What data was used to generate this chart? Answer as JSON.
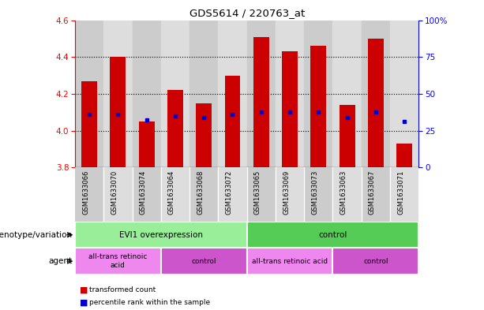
{
  "title": "GDS5614 / 220763_at",
  "samples": [
    "GSM1633066",
    "GSM1633070",
    "GSM1633074",
    "GSM1633064",
    "GSM1633068",
    "GSM1633072",
    "GSM1633065",
    "GSM1633069",
    "GSM1633073",
    "GSM1633063",
    "GSM1633067",
    "GSM1633071"
  ],
  "bar_values": [
    4.27,
    4.4,
    4.05,
    4.22,
    4.15,
    4.3,
    4.51,
    4.43,
    4.46,
    4.14,
    4.5,
    3.93
  ],
  "bar_base": 3.8,
  "blue_dot_values": [
    4.09,
    4.09,
    4.06,
    4.08,
    4.07,
    4.09,
    4.1,
    4.1,
    4.1,
    4.07,
    4.1,
    4.05
  ],
  "ylim_left": [
    3.8,
    4.6
  ],
  "ylim_right": [
    0,
    100
  ],
  "yticks_left": [
    3.8,
    4.0,
    4.2,
    4.4,
    4.6
  ],
  "yticks_right": [
    0,
    25,
    50,
    75,
    100
  ],
  "bar_color": "#cc0000",
  "dot_color": "#0000cc",
  "bar_width": 0.55,
  "groups": [
    {
      "label": "EVI1 overexpression",
      "start": 0,
      "end": 6,
      "color": "#99ee99"
    },
    {
      "label": "control",
      "start": 6,
      "end": 12,
      "color": "#55cc55"
    }
  ],
  "agents": [
    {
      "label": "all-trans retinoic\nacid",
      "start": 0,
      "end": 3,
      "color": "#ee88ee"
    },
    {
      "label": "control",
      "start": 3,
      "end": 6,
      "color": "#cc55cc"
    },
    {
      "label": "all-trans retinoic acid",
      "start": 6,
      "end": 9,
      "color": "#ee88ee"
    },
    {
      "label": "control",
      "start": 9,
      "end": 12,
      "color": "#cc55cc"
    }
  ],
  "genotype_label": "genotype/variation",
  "agent_label": "agent",
  "legend_items": [
    {
      "label": "transformed count",
      "color": "#cc0000"
    },
    {
      "label": "percentile rank within the sample",
      "color": "#0000cc"
    }
  ],
  "bg_color": "#ffffff",
  "col_bg_even": "#cccccc",
  "col_bg_odd": "#dddddd",
  "gridline_color": "#000000",
  "gridline_ticks": [
    4.0,
    4.2,
    4.4
  ]
}
